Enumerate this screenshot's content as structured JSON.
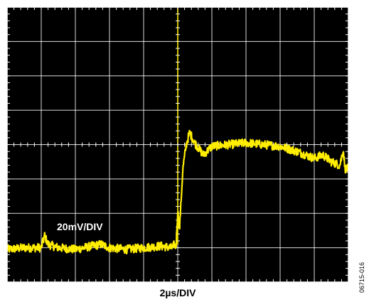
{
  "chart_data": {
    "type": "line",
    "title": "",
    "xlabel": "2µs/DIV",
    "ylabel": "",
    "annotations": [
      "20mV/DIV"
    ],
    "figure_id": "06715-016",
    "grid": true,
    "grid_divisions": {
      "x": 10,
      "y": 8
    },
    "xlim": [
      0,
      20
    ],
    "ylim": [
      -80,
      80
    ],
    "x_unit": "µs",
    "y_unit": "mV",
    "colors": {
      "background": "#000000",
      "trace": "#ffee00",
      "grid": "#ffffff",
      "frame": "#ffffff"
    },
    "series": [
      {
        "x": [
          0,
          1,
          2,
          2.2,
          2.4,
          3,
          4,
          5,
          5.5,
          6,
          7,
          8,
          9,
          9.6,
          9.7,
          9.8,
          9.9,
          10.0,
          10.1,
          10.3,
          10.5,
          10.7,
          11,
          11.5,
          12,
          13,
          14,
          15,
          16,
          17,
          18,
          18.5,
          19,
          19.5,
          19.7,
          19.8,
          20
        ],
        "y": [
          -61,
          -60,
          -60,
          -53,
          -58,
          -60,
          -61,
          -59,
          -58,
          -60,
          -61,
          -60,
          -59,
          -60,
          -60,
          -58,
          -60,
          -38,
          -50,
          -14,
          0,
          7,
          1,
          -6,
          -1,
          0,
          1,
          0,
          -1,
          -4,
          -8,
          -6,
          -10,
          -12,
          -3,
          -14,
          -14
        ]
      }
    ]
  }
}
